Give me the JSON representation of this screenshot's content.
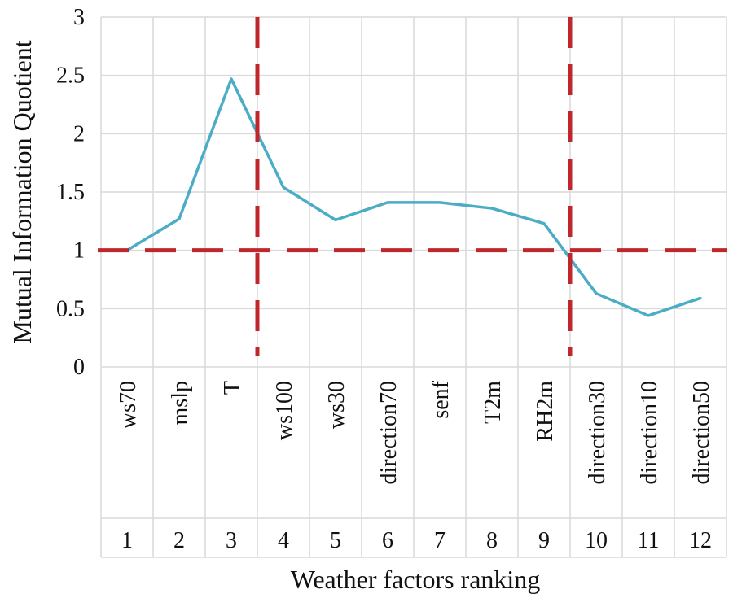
{
  "chart_data": {
    "type": "line",
    "xlabel": "Weather factors ranking",
    "ylabel": "Mutual Information Quotient",
    "ylim": [
      0,
      3
    ],
    "yticks": [
      "0",
      "0.5",
      "1",
      "1.5",
      "2",
      "2.5",
      "3"
    ],
    "ranks": [
      "1",
      "2",
      "3",
      "4",
      "5",
      "6",
      "7",
      "8",
      "9",
      "10",
      "11",
      "12"
    ],
    "categories": [
      "ws70",
      "mslp",
      "T",
      "ws100",
      "ws30",
      "direction70",
      "senf",
      "T2m",
      "RH2m",
      "direction30",
      "direction10",
      "direction50"
    ],
    "values": [
      1.0,
      1.27,
      2.47,
      1.54,
      1.26,
      1.41,
      1.41,
      1.36,
      1.23,
      0.63,
      0.44,
      0.59
    ],
    "threshold_y": 1,
    "threshold_dividers_after_rank": [
      3,
      9
    ],
    "grid": true,
    "colors": {
      "line": "#4bacc6",
      "threshold": "#c0272d",
      "grid": "#d9d9d9"
    }
  }
}
